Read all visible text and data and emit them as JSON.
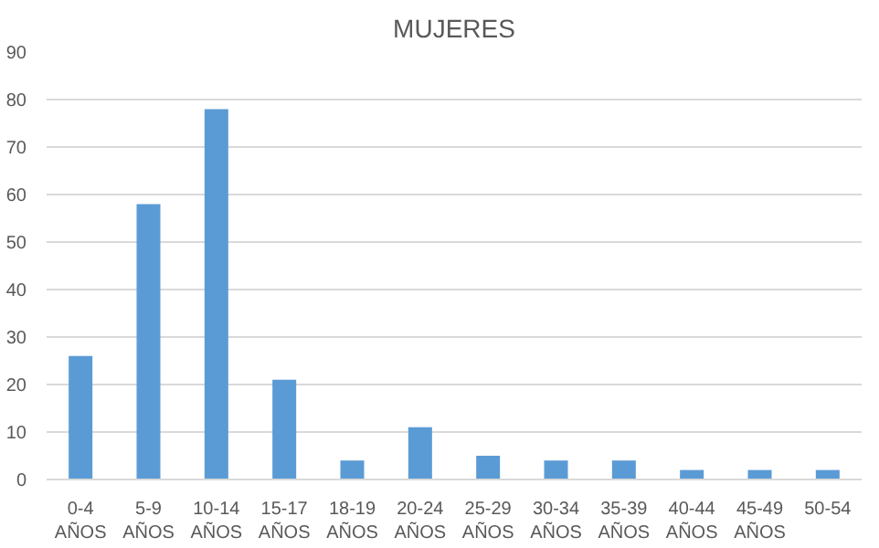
{
  "chart_data": {
    "type": "bar",
    "title": "MUJERES",
    "categories": [
      "0-4 AÑOS",
      "5-9 AÑOS",
      "10-14 AÑOS",
      "15-17 AÑOS",
      "18-19 AÑOS",
      "20-24 AÑOS",
      "25-29 AÑOS",
      "30-34 AÑOS",
      "35-39 AÑOS",
      "40-44 AÑOS",
      "45-49 AÑOS",
      "50-54"
    ],
    "values": [
      26,
      58,
      78,
      21,
      4,
      11,
      5,
      4,
      4,
      2,
      2,
      2
    ],
    "color": "#5b9bd5",
    "ylim": [
      0,
      90
    ],
    "yticks": [
      0,
      10,
      20,
      30,
      40,
      50,
      60,
      70,
      80,
      90
    ],
    "grid": "y"
  }
}
